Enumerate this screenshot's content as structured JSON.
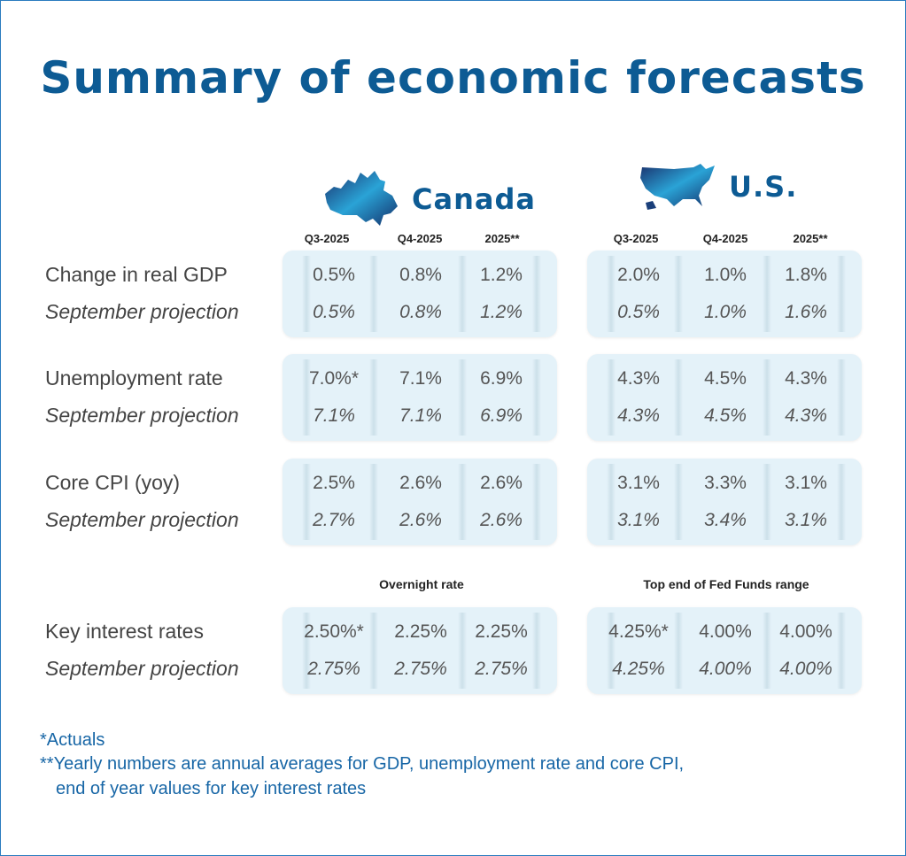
{
  "title": "Summary of economic forecasts",
  "countries": [
    {
      "name": "Canada",
      "icon": "canada-map-icon",
      "columns": [
        "Q3-2025",
        "Q4-2025",
        "2025**"
      ],
      "rate_header": "Overnight rate"
    },
    {
      "name": "U.S.",
      "icon": "usa-map-icon",
      "columns": [
        "Q3-2025",
        "Q4-2025",
        "2025**"
      ],
      "rate_header": "Top end of Fed Funds range"
    }
  ],
  "rows": [
    {
      "label": "Change in real GDP",
      "proj_label": "September projection",
      "canada": {
        "current": [
          "0.5%",
          "0.8%",
          "1.2%"
        ],
        "projection": [
          "0.5%",
          "0.8%",
          "1.2%"
        ]
      },
      "us": {
        "current": [
          "2.0%",
          "1.0%",
          "1.8%"
        ],
        "projection": [
          "0.5%",
          "1.0%",
          "1.6%"
        ]
      }
    },
    {
      "label": "Unemployment rate",
      "proj_label": "September projection",
      "canada": {
        "current": [
          "7.0%*",
          "7.1%",
          "6.9%"
        ],
        "projection": [
          "7.1%",
          "7.1%",
          "6.9%"
        ]
      },
      "us": {
        "current": [
          "4.3%",
          "4.5%",
          "4.3%"
        ],
        "projection": [
          "4.3%",
          "4.5%",
          "4.3%"
        ]
      }
    },
    {
      "label": "Core CPI (yoy)",
      "proj_label": "September projection",
      "canada": {
        "current": [
          "2.5%",
          "2.6%",
          "2.6%"
        ],
        "projection": [
          "2.7%",
          "2.6%",
          "2.6%"
        ]
      },
      "us": {
        "current": [
          "3.1%",
          "3.3%",
          "3.1%"
        ],
        "projection": [
          "3.1%",
          "3.4%",
          "3.1%"
        ]
      }
    },
    {
      "label": "Key interest rates",
      "proj_label": "September projection",
      "canada": {
        "current": [
          "2.50%*",
          "2.25%",
          "2.25%"
        ],
        "projection": [
          "2.75%",
          "2.75%",
          "2.75%"
        ]
      },
      "us": {
        "current": [
          "4.25%*",
          "4.00%",
          "4.00%"
        ],
        "projection": [
          "4.25%",
          "4.00%",
          "4.00%"
        ]
      }
    }
  ],
  "footnotes": [
    "*Actuals",
    "**Yearly numbers are annual averages for GDP, unemployment rate and core CPI,",
    "end of year values for key interest rates"
  ],
  "colors": {
    "title": "#0d5b94",
    "box": "#e4f2f9",
    "footnote": "#1766a6"
  }
}
